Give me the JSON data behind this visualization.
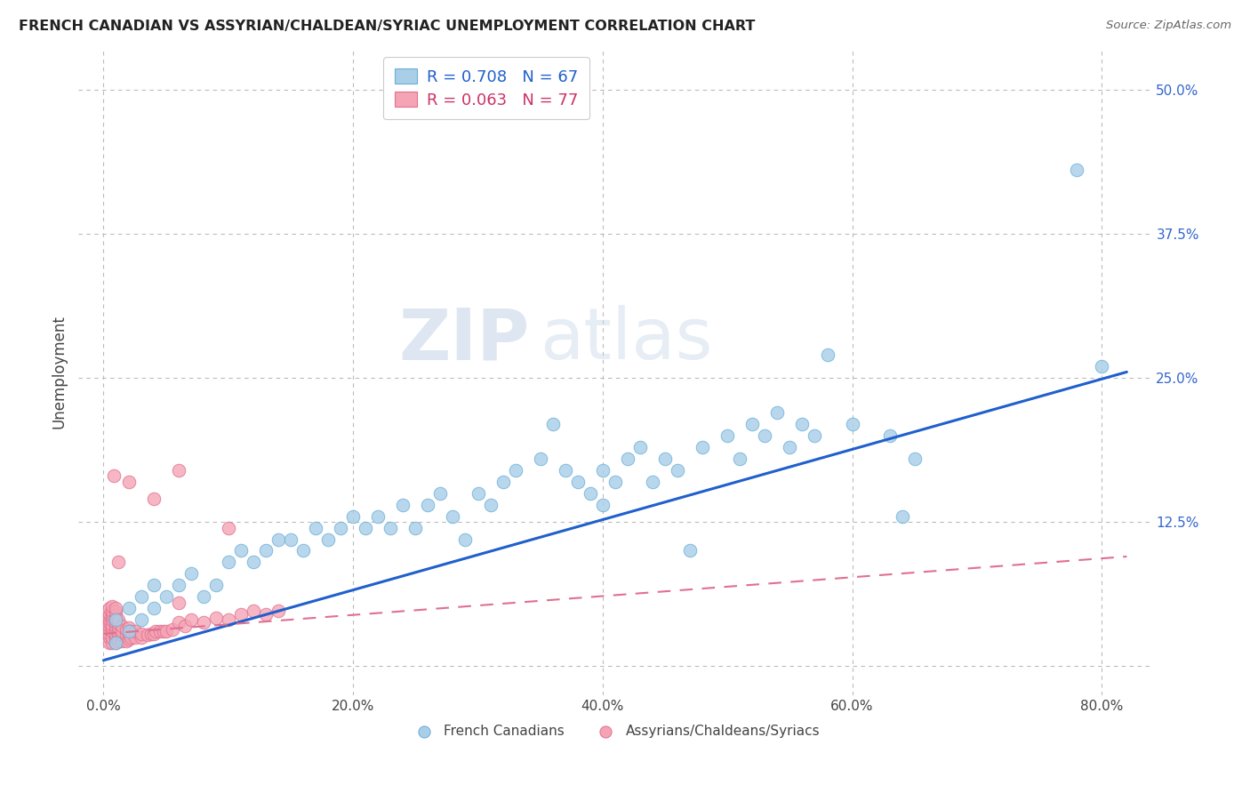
{
  "title": "FRENCH CANADIAN VS ASSYRIAN/CHALDEAN/SYRIAC UNEMPLOYMENT CORRELATION CHART",
  "source": "Source: ZipAtlas.com",
  "ylabel": "Unemployment",
  "xtick_positions": [
    0.0,
    0.2,
    0.4,
    0.6,
    0.8
  ],
  "xtick_labels": [
    "0.0%",
    "20.0%",
    "40.0%",
    "60.0%",
    "80.0%"
  ],
  "ytick_positions": [
    0.0,
    0.125,
    0.25,
    0.375,
    0.5
  ],
  "ytick_labels": [
    "",
    "12.5%",
    "25.0%",
    "37.5%",
    "50.0%"
  ],
  "xlim": [
    -0.02,
    0.84
  ],
  "ylim": [
    -0.025,
    0.535
  ],
  "series1_color": "#A8CEE8",
  "series1_edgecolor": "#6AAED6",
  "series2_color": "#F4A4B4",
  "series2_edgecolor": "#E07090",
  "trend1_color": "#2060CC",
  "trend2_color": "#E07090",
  "R1": 0.708,
  "N1": 67,
  "R2": 0.063,
  "N2": 77,
  "legend_label1": "French Canadians",
  "legend_label2": "Assyrians/Chaldeans/Syriacs",
  "watermark_zip": "ZIP",
  "watermark_atlas": "atlas",
  "blue_trend_x0": 0.0,
  "blue_trend_y0": 0.005,
  "blue_trend_x1": 0.82,
  "blue_trend_y1": 0.255,
  "pink_trend_x0": 0.0,
  "pink_trend_y0": 0.028,
  "pink_trend_x1": 0.82,
  "pink_trend_y1": 0.095,
  "blue_x": [
    0.01,
    0.01,
    0.02,
    0.02,
    0.03,
    0.03,
    0.04,
    0.04,
    0.05,
    0.06,
    0.07,
    0.08,
    0.09,
    0.1,
    0.11,
    0.12,
    0.13,
    0.14,
    0.15,
    0.16,
    0.17,
    0.18,
    0.19,
    0.2,
    0.21,
    0.22,
    0.23,
    0.24,
    0.25,
    0.26,
    0.27,
    0.28,
    0.29,
    0.3,
    0.31,
    0.32,
    0.33,
    0.35,
    0.36,
    0.37,
    0.38,
    0.39,
    0.4,
    0.4,
    0.41,
    0.42,
    0.43,
    0.44,
    0.45,
    0.46,
    0.47,
    0.48,
    0.5,
    0.51,
    0.52,
    0.53,
    0.54,
    0.55,
    0.56,
    0.57,
    0.58,
    0.6,
    0.63,
    0.64,
    0.65,
    0.78,
    0.8
  ],
  "blue_y": [
    0.02,
    0.04,
    0.03,
    0.05,
    0.04,
    0.06,
    0.05,
    0.07,
    0.06,
    0.07,
    0.08,
    0.06,
    0.07,
    0.09,
    0.1,
    0.09,
    0.1,
    0.11,
    0.11,
    0.1,
    0.12,
    0.11,
    0.12,
    0.13,
    0.12,
    0.13,
    0.12,
    0.14,
    0.12,
    0.14,
    0.15,
    0.13,
    0.11,
    0.15,
    0.14,
    0.16,
    0.17,
    0.18,
    0.21,
    0.17,
    0.16,
    0.15,
    0.17,
    0.14,
    0.16,
    0.18,
    0.19,
    0.16,
    0.18,
    0.17,
    0.1,
    0.19,
    0.2,
    0.18,
    0.21,
    0.2,
    0.22,
    0.19,
    0.21,
    0.2,
    0.27,
    0.21,
    0.2,
    0.13,
    0.18,
    0.43,
    0.26
  ],
  "pink_x": [
    0.005,
    0.005,
    0.005,
    0.005,
    0.005,
    0.005,
    0.005,
    0.005,
    0.005,
    0.005,
    0.007,
    0.007,
    0.007,
    0.007,
    0.007,
    0.007,
    0.007,
    0.007,
    0.007,
    0.007,
    0.01,
    0.01,
    0.01,
    0.01,
    0.01,
    0.01,
    0.01,
    0.01,
    0.01,
    0.01,
    0.012,
    0.012,
    0.012,
    0.012,
    0.012,
    0.012,
    0.015,
    0.015,
    0.015,
    0.015,
    0.018,
    0.018,
    0.018,
    0.02,
    0.02,
    0.02,
    0.022,
    0.022,
    0.025,
    0.025,
    0.03,
    0.03,
    0.035,
    0.038,
    0.04,
    0.042,
    0.045,
    0.048,
    0.05,
    0.055,
    0.06,
    0.065,
    0.07,
    0.08,
    0.09,
    0.1,
    0.11,
    0.12,
    0.13,
    0.14,
    0.06,
    0.04,
    0.02,
    0.008,
    0.012,
    0.06,
    0.1
  ],
  "pink_y": [
    0.02,
    0.025,
    0.028,
    0.032,
    0.035,
    0.038,
    0.04,
    0.043,
    0.046,
    0.05,
    0.02,
    0.025,
    0.03,
    0.033,
    0.036,
    0.04,
    0.043,
    0.046,
    0.048,
    0.052,
    0.02,
    0.025,
    0.028,
    0.032,
    0.035,
    0.038,
    0.041,
    0.044,
    0.047,
    0.05,
    0.022,
    0.027,
    0.03,
    0.034,
    0.037,
    0.04,
    0.022,
    0.027,
    0.03,
    0.035,
    0.022,
    0.027,
    0.032,
    0.023,
    0.028,
    0.033,
    0.025,
    0.03,
    0.025,
    0.03,
    0.025,
    0.028,
    0.027,
    0.028,
    0.028,
    0.03,
    0.03,
    0.03,
    0.03,
    0.032,
    0.038,
    0.035,
    0.04,
    0.038,
    0.042,
    0.04,
    0.045,
    0.048,
    0.045,
    0.048,
    0.17,
    0.145,
    0.16,
    0.165,
    0.09,
    0.055,
    0.12
  ]
}
